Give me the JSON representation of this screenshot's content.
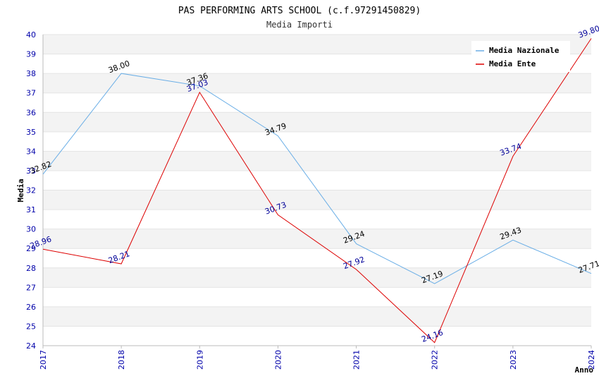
{
  "chart_data": {
    "type": "line",
    "title": "PAS PERFORMING ARTS SCHOOL (c.f.97291450829)",
    "subtitle": "Media Importi",
    "xlabel": "Anno",
    "ylabel": "Media",
    "x": [
      "2017",
      "2018",
      "2019",
      "2020",
      "2021",
      "2022",
      "2023",
      "2024"
    ],
    "ylim": [
      24,
      40
    ],
    "yticks": [
      24,
      25,
      26,
      27,
      28,
      29,
      30,
      31,
      32,
      33,
      34,
      35,
      36,
      37,
      38,
      39,
      40
    ],
    "grid": "horizontal bands",
    "legend_position": "top-right",
    "series": [
      {
        "name": "Media Nazionale",
        "color": "#6aaee6",
        "label_color": "#000000",
        "values": [
          32.82,
          38.0,
          37.36,
          34.79,
          29.24,
          27.19,
          29.43,
          27.71
        ],
        "labels": [
          "32.82",
          "38.00",
          "37.36",
          "34.79",
          "29.24",
          "27.19",
          "29.43",
          "27.71"
        ]
      },
      {
        "name": "Media Ente",
        "color": "#dd0000",
        "label_color": "#000099",
        "values": [
          28.96,
          28.21,
          37.03,
          30.73,
          27.92,
          24.16,
          33.74,
          39.8
        ],
        "labels": [
          "28.96",
          "28.21",
          "37.03",
          "30.73",
          "27.92",
          "24.16",
          "33.74",
          "39.80"
        ]
      }
    ]
  }
}
